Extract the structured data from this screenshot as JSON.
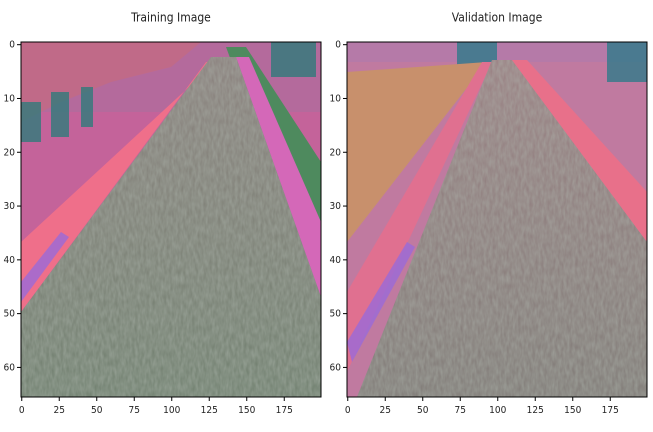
{
  "chart_data": [
    {
      "type": "image",
      "title": "Training Image",
      "xlim": [
        -0.5,
        199.5
      ],
      "ylim": [
        65.5,
        -0.5
      ],
      "xticks": [
        0,
        25,
        50,
        75,
        100,
        125,
        150,
        175
      ],
      "yticks": [
        0,
        10,
        20,
        30,
        40,
        50,
        60
      ]
    },
    {
      "type": "image",
      "title": "Validation Image",
      "xlim": [
        -0.5,
        199.5
      ],
      "ylim": [
        65.5,
        -0.5
      ],
      "xticks": [
        0,
        25,
        50,
        75,
        100,
        125,
        150,
        175
      ],
      "yticks": [
        0,
        10,
        20,
        30,
        40,
        50,
        60
      ]
    }
  ]
}
